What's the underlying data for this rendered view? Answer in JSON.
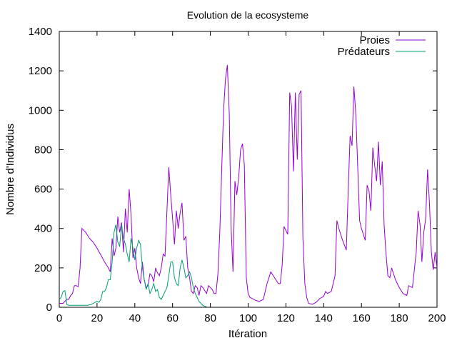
{
  "chart_data": {
    "type": "line",
    "title": "Evolution de la ecosysteme",
    "xlabel": "Itération",
    "ylabel": "Nombre d'Individus",
    "xlim": [
      0,
      200
    ],
    "ylim": [
      0,
      1400
    ],
    "x_ticks": [
      0,
      20,
      40,
      60,
      80,
      100,
      120,
      140,
      160,
      180,
      200
    ],
    "y_ticks": [
      0,
      200,
      400,
      600,
      800,
      1000,
      1200,
      1400
    ],
    "grid": false,
    "legend": "top-right",
    "series": [
      {
        "name": "Proies",
        "color": "#9400d3",
        "points": [
          [
            0,
            20
          ],
          [
            2,
            20
          ],
          [
            4,
            40
          ],
          [
            5,
            40
          ],
          [
            6,
            60
          ],
          [
            7,
            70
          ],
          [
            8,
            110
          ],
          [
            9,
            110
          ],
          [
            10,
            105
          ],
          [
            11,
            200
          ],
          [
            12,
            400
          ],
          [
            14,
            380
          ],
          [
            16,
            350
          ],
          [
            18,
            330
          ],
          [
            20,
            300
          ],
          [
            22,
            265
          ],
          [
            24,
            230
          ],
          [
            26,
            200
          ],
          [
            27,
            180
          ],
          [
            28,
            350
          ],
          [
            29,
            260
          ],
          [
            30,
            300
          ],
          [
            31,
            460
          ],
          [
            32,
            380
          ],
          [
            33,
            430
          ],
          [
            34,
            280
          ],
          [
            35,
            500
          ],
          [
            36,
            380
          ],
          [
            37,
            600
          ],
          [
            38,
            470
          ],
          [
            39,
            250
          ],
          [
            40,
            300
          ],
          [
            41,
            200
          ],
          [
            42,
            150
          ],
          [
            43,
            120
          ],
          [
            44,
            230
          ],
          [
            45,
            140
          ],
          [
            46,
            100
          ],
          [
            47,
            110
          ],
          [
            48,
            170
          ],
          [
            49,
            160
          ],
          [
            50,
            130
          ],
          [
            51,
            200
          ],
          [
            52,
            175
          ],
          [
            53,
            160
          ],
          [
            54,
            200
          ],
          [
            55,
            270
          ],
          [
            56,
            260
          ],
          [
            57,
            490
          ],
          [
            58,
            710
          ],
          [
            59,
            570
          ],
          [
            60,
            450
          ],
          [
            61,
            320
          ],
          [
            62,
            490
          ],
          [
            63,
            400
          ],
          [
            64,
            480
          ],
          [
            65,
            530
          ],
          [
            66,
            340
          ],
          [
            67,
            360
          ],
          [
            68,
            200
          ],
          [
            69,
            150
          ],
          [
            70,
            80
          ],
          [
            71,
            70
          ],
          [
            72,
            110
          ],
          [
            73,
            100
          ],
          [
            74,
            60
          ],
          [
            75,
            110
          ],
          [
            76,
            100
          ],
          [
            77,
            85
          ],
          [
            78,
            70
          ],
          [
            79,
            110
          ],
          [
            80,
            100
          ],
          [
            81,
            90
          ],
          [
            82,
            70
          ],
          [
            83,
            70
          ],
          [
            84,
            170
          ],
          [
            85,
            380
          ],
          [
            86,
            700
          ],
          [
            87,
            1000
          ],
          [
            88,
            1160
          ],
          [
            89,
            1230
          ],
          [
            90,
            980
          ],
          [
            91,
            400
          ],
          [
            92,
            180
          ],
          [
            93,
            640
          ],
          [
            94,
            570
          ],
          [
            95,
            660
          ],
          [
            96,
            800
          ],
          [
            97,
            830
          ],
          [
            98,
            720
          ],
          [
            99,
            150
          ],
          [
            100,
            70
          ],
          [
            101,
            50
          ],
          [
            102,
            45
          ],
          [
            104,
            35
          ],
          [
            106,
            30
          ],
          [
            108,
            40
          ],
          [
            110,
            120
          ],
          [
            112,
            180
          ],
          [
            114,
            150
          ],
          [
            116,
            120
          ],
          [
            117,
            120
          ],
          [
            118,
            210
          ],
          [
            119,
            410
          ],
          [
            120,
            390
          ],
          [
            121,
            370
          ],
          [
            122,
            1090
          ],
          [
            123,
            1020
          ],
          [
            124,
            690
          ],
          [
            125,
            1090
          ],
          [
            126,
            750
          ],
          [
            127,
            1080
          ],
          [
            128,
            1100
          ],
          [
            129,
            350
          ],
          [
            130,
            120
          ],
          [
            131,
            50
          ],
          [
            132,
            20
          ],
          [
            134,
            15
          ],
          [
            136,
            25
          ],
          [
            138,
            45
          ],
          [
            140,
            55
          ],
          [
            141,
            80
          ],
          [
            142,
            70
          ],
          [
            144,
            80
          ],
          [
            146,
            160
          ],
          [
            147,
            440
          ],
          [
            148,
            400
          ],
          [
            150,
            340
          ],
          [
            152,
            290
          ],
          [
            153,
            600
          ],
          [
            154,
            870
          ],
          [
            155,
            820
          ],
          [
            156,
            1120
          ],
          [
            157,
            980
          ],
          [
            158,
            720
          ],
          [
            159,
            440
          ],
          [
            160,
            400
          ],
          [
            162,
            340
          ],
          [
            163,
            620
          ],
          [
            164,
            590
          ],
          [
            165,
            490
          ],
          [
            166,
            810
          ],
          [
            167,
            720
          ],
          [
            168,
            640
          ],
          [
            169,
            840
          ],
          [
            170,
            620
          ],
          [
            171,
            740
          ],
          [
            172,
            420
          ],
          [
            173,
            270
          ],
          [
            174,
            160
          ],
          [
            175,
            150
          ],
          [
            176,
            200
          ],
          [
            178,
            140
          ],
          [
            180,
            100
          ],
          [
            182,
            70
          ],
          [
            184,
            60
          ],
          [
            185,
            110
          ],
          [
            187,
            100
          ],
          [
            189,
            280
          ],
          [
            190,
            490
          ],
          [
            191,
            420
          ],
          [
            192,
            230
          ],
          [
            193,
            380
          ],
          [
            194,
            450
          ],
          [
            195,
            700
          ],
          [
            196,
            530
          ],
          [
            197,
            280
          ],
          [
            198,
            190
          ],
          [
            199,
            280
          ],
          [
            200,
            200
          ]
        ]
      },
      {
        "name": "Prédateurs",
        "color": "#009e73",
        "points": [
          [
            0,
            40
          ],
          [
            1,
            50
          ],
          [
            2,
            80
          ],
          [
            3,
            85
          ],
          [
            4,
            15
          ],
          [
            5,
            10
          ],
          [
            10,
            10
          ],
          [
            15,
            10
          ],
          [
            17,
            15
          ],
          [
            20,
            30
          ],
          [
            21,
            25
          ],
          [
            22,
            40
          ],
          [
            23,
            80
          ],
          [
            24,
            80
          ],
          [
            25,
            100
          ],
          [
            26,
            140
          ],
          [
            27,
            140
          ],
          [
            28,
            230
          ],
          [
            29,
            380
          ],
          [
            30,
            420
          ],
          [
            31,
            330
          ],
          [
            32,
            310
          ],
          [
            33,
            420
          ],
          [
            34,
            350
          ],
          [
            35,
            320
          ],
          [
            36,
            270
          ],
          [
            37,
            230
          ],
          [
            38,
            350
          ],
          [
            39,
            300
          ],
          [
            40,
            240
          ],
          [
            41,
            300
          ],
          [
            42,
            340
          ],
          [
            43,
            320
          ],
          [
            44,
            200
          ],
          [
            45,
            140
          ],
          [
            46,
            90
          ],
          [
            47,
            120
          ],
          [
            48,
            70
          ],
          [
            49,
            90
          ],
          [
            50,
            120
          ],
          [
            51,
            80
          ],
          [
            52,
            90
          ],
          [
            53,
            50
          ],
          [
            54,
            40
          ],
          [
            55,
            60
          ],
          [
            56,
            80
          ],
          [
            57,
            100
          ],
          [
            58,
            160
          ],
          [
            59,
            230
          ],
          [
            60,
            230
          ],
          [
            61,
            150
          ],
          [
            62,
            120
          ],
          [
            63,
            110
          ],
          [
            64,
            200
          ],
          [
            65,
            240
          ],
          [
            66,
            200
          ],
          [
            67,
            150
          ],
          [
            68,
            160
          ],
          [
            69,
            180
          ],
          [
            70,
            150
          ],
          [
            71,
            100
          ],
          [
            72,
            70
          ],
          [
            73,
            50
          ],
          [
            74,
            30
          ],
          [
            75,
            20
          ],
          [
            76,
            10
          ],
          [
            77,
            5
          ],
          [
            78,
            2
          ]
        ]
      }
    ]
  }
}
